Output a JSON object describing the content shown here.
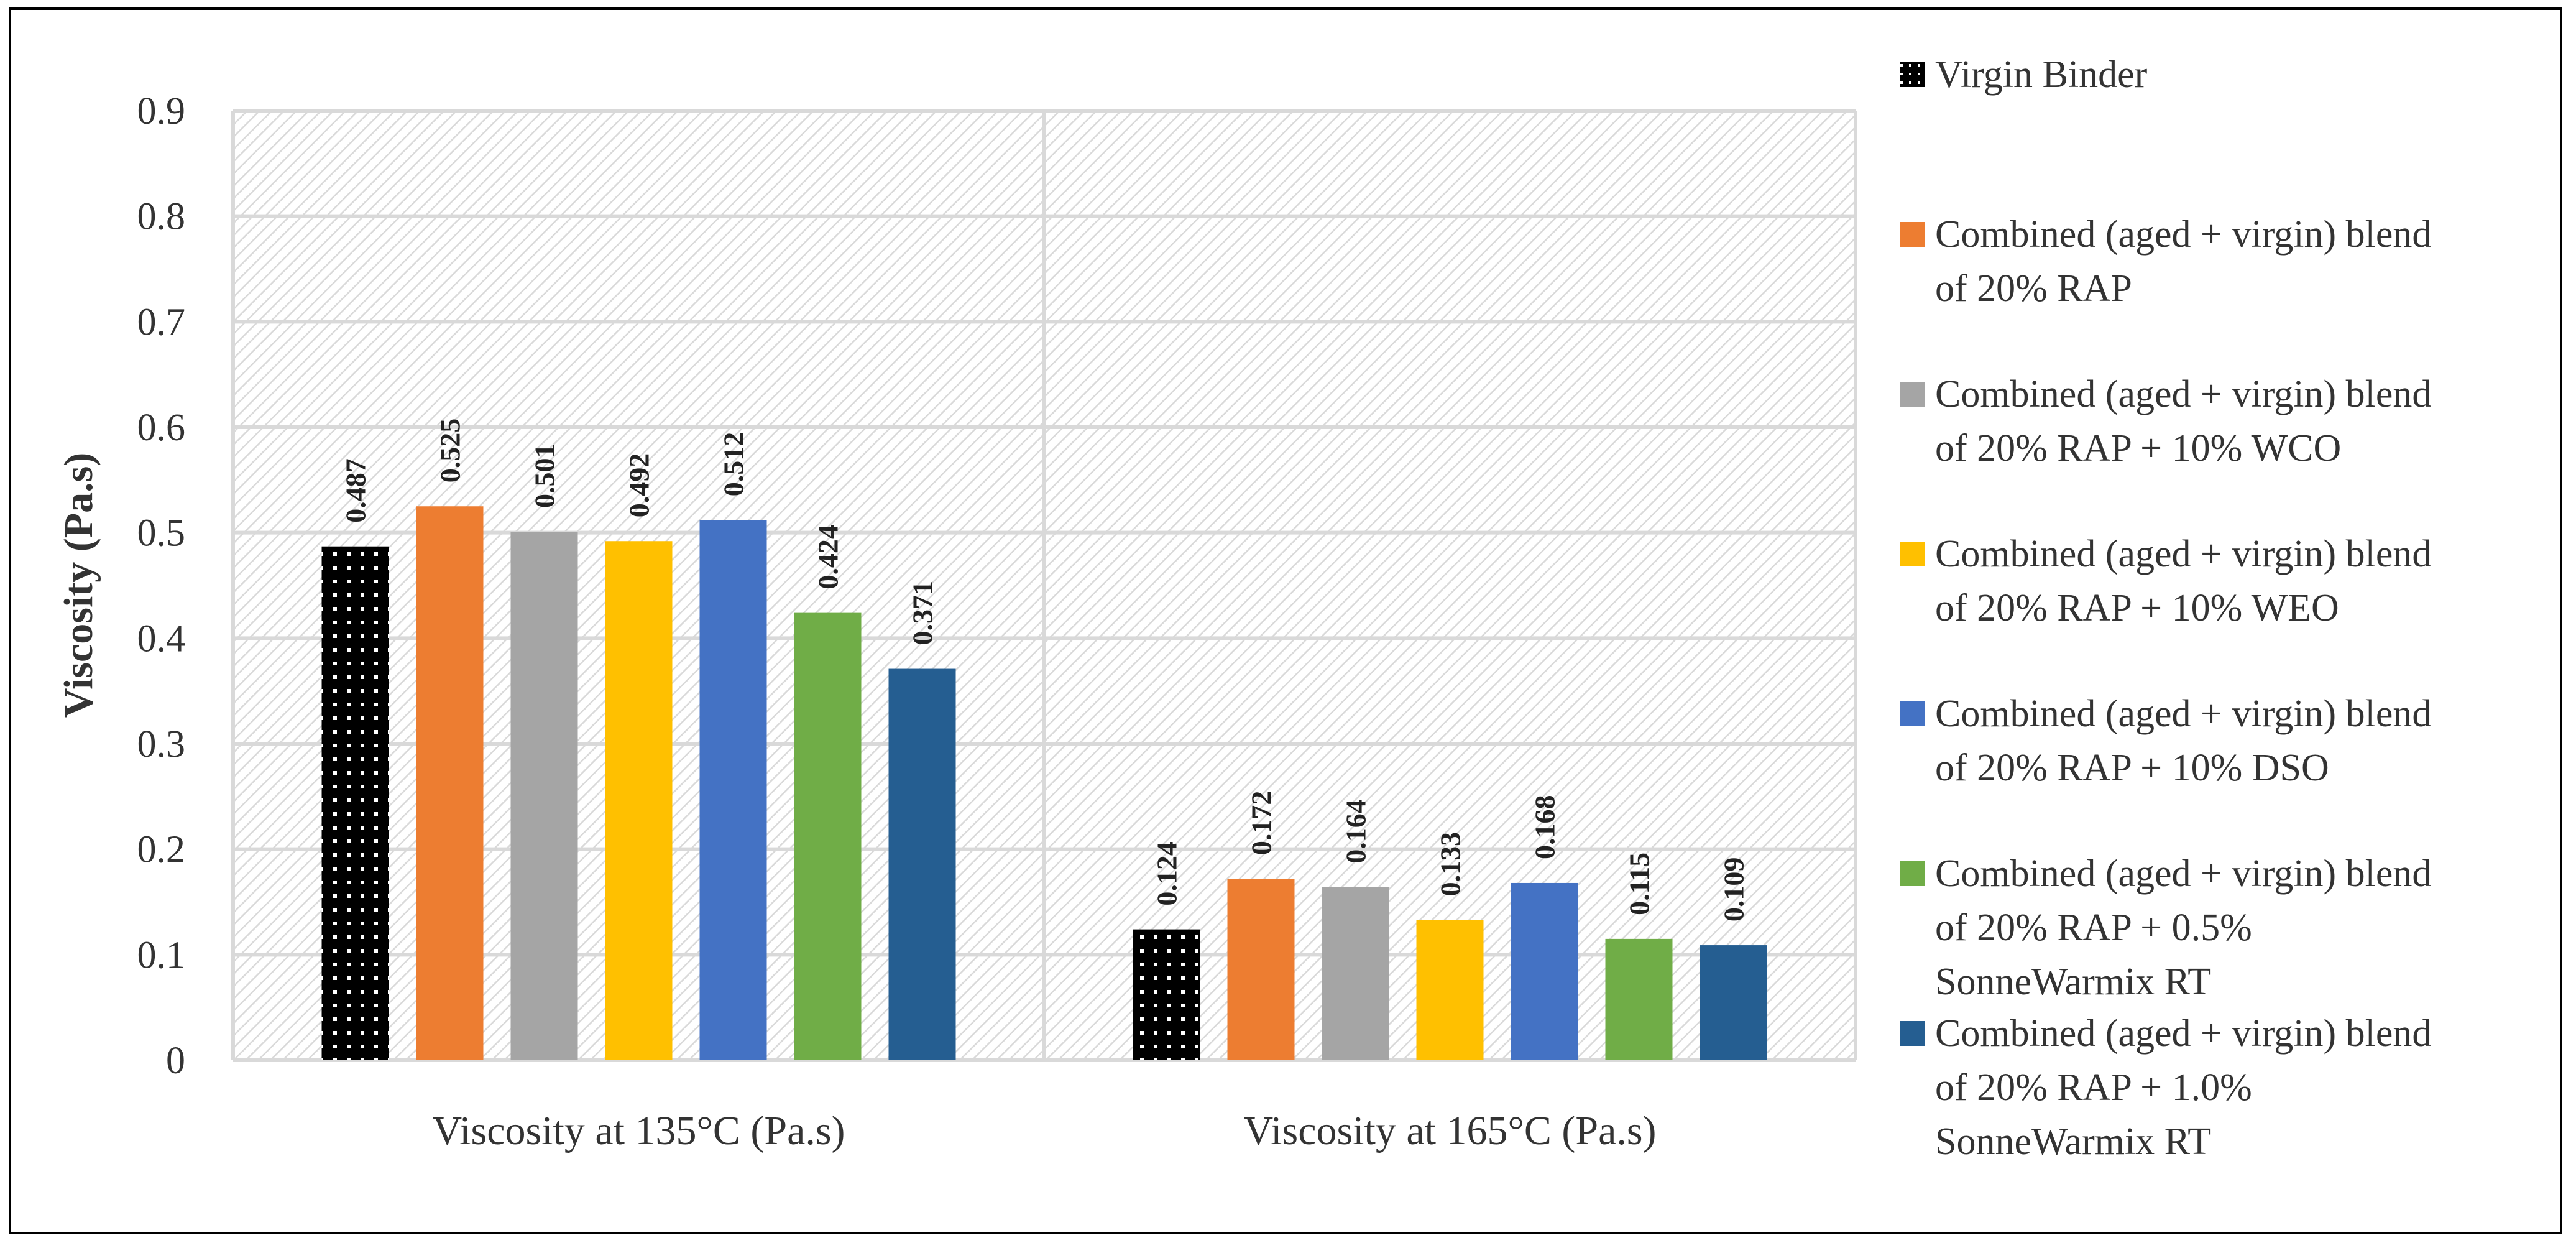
{
  "chart_data": {
    "type": "bar",
    "title": "",
    "xlabel": "",
    "ylabel": "Viscosity (Pa.s)",
    "ylim": [
      0,
      0.9
    ],
    "yticks": [
      "0",
      "0.1",
      "0.2",
      "0.3",
      "0.4",
      "0.5",
      "0.6",
      "0.7",
      "0.8",
      "0.9"
    ],
    "grid": true,
    "legend_position": "right",
    "categories": [
      "Viscosity at 135°C (Pa.s)",
      "Viscosity at 165°C (Pa.s)"
    ],
    "series": [
      {
        "name": "Virgin Binder",
        "lines": [
          "Virgin Binder"
        ],
        "color": "#000000",
        "pattern": "dots",
        "values": [
          0.487,
          0.124
        ],
        "labels": [
          "0.487",
          "0.124"
        ]
      },
      {
        "name": "Combined (aged + virgin) blend of 20% RAP",
        "lines": [
          "Combined (aged + virgin) blend",
          "of 20% RAP"
        ],
        "color": "#ED7D31",
        "values": [
          0.525,
          0.172
        ],
        "labels": [
          "0.525",
          "0.172"
        ]
      },
      {
        "name": "Combined (aged + virgin) blend of 20% RAP + 10% WCO",
        "lines": [
          "Combined (aged + virgin) blend",
          "of 20% RAP + 10% WCO"
        ],
        "color": "#A5A5A5",
        "values": [
          0.501,
          0.164
        ],
        "labels": [
          "0.501",
          "0.164"
        ]
      },
      {
        "name": "Combined (aged + virgin) blend of 20% RAP + 10% WEO",
        "lines": [
          "Combined (aged + virgin) blend",
          "of 20% RAP + 10% WEO"
        ],
        "color": "#FFC000",
        "values": [
          0.492,
          0.133
        ],
        "labels": [
          "0.492",
          "0.133"
        ]
      },
      {
        "name": "Combined (aged + virgin) blend of 20% RAP + 10% DSO",
        "lines": [
          "Combined (aged + virgin) blend",
          "of 20% RAP + 10% DSO"
        ],
        "color": "#4472C4",
        "values": [
          0.512,
          0.168
        ],
        "labels": [
          "0.512",
          "0.168"
        ]
      },
      {
        "name": "Combined (aged + virgin) blend of 20% RAP + 0.5% SonneWarmix RT",
        "lines": [
          "Combined (aged + virgin) blend",
          "of 20% RAP + 0.5%",
          "SonneWarmix RT"
        ],
        "color": "#70AD47",
        "values": [
          0.424,
          0.115
        ],
        "labels": [
          "0.424",
          "0.115"
        ]
      },
      {
        "name": "Combined (aged + virgin) blend of 20% RAP + 1.0% SonneWarmix RT",
        "lines": [
          "Combined (aged + virgin) blend",
          "of 20% RAP + 1.0%",
          "SonneWarmix RT"
        ],
        "color": "#255E91",
        "values": [
          0.371,
          0.109
        ],
        "labels": [
          "0.371",
          "0.109"
        ]
      }
    ]
  }
}
